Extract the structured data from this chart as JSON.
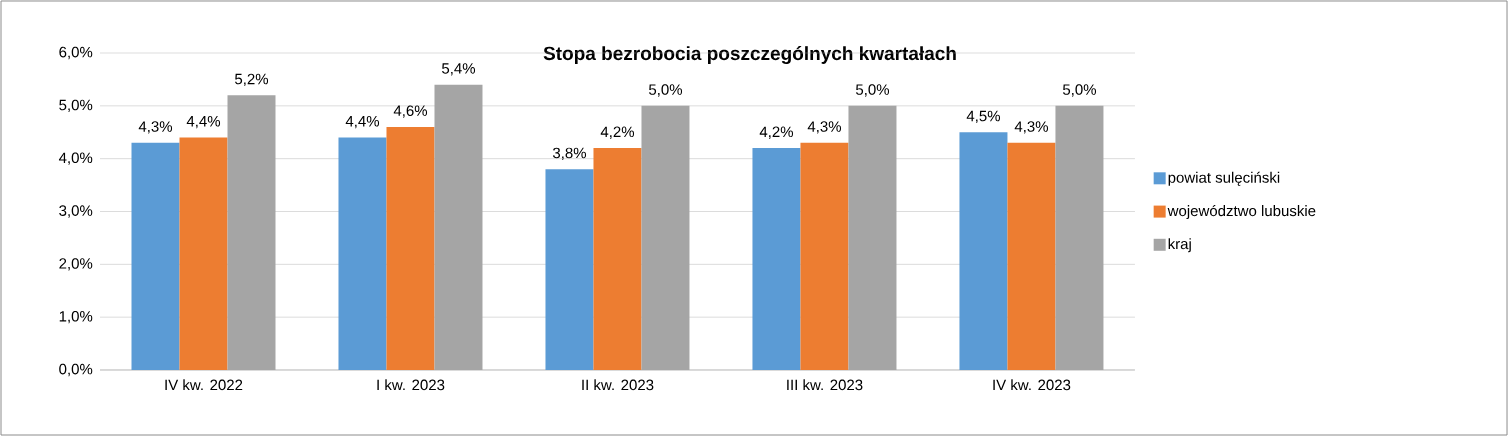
{
  "chart_data": {
    "type": "bar",
    "title": "Stopa bezrobocia poszczególnych kwartałach",
    "categories": [
      "IV kw. 2022",
      "I kw. 2023",
      "II kw. 2023",
      "III kw. 2023",
      "IV kw. 2023"
    ],
    "series": [
      {
        "name": "powiat sulęciński",
        "color": "#5b9bd5",
        "values": [
          4.3,
          4.4,
          3.8,
          4.2,
          4.5
        ],
        "value_labels": [
          "4,3%",
          "4,4%",
          "3,8%",
          "4,2%",
          "4,5%"
        ]
      },
      {
        "name": "województwo lubuskie",
        "color": "#ed7d31",
        "values": [
          4.4,
          4.6,
          4.2,
          4.3,
          4.3
        ],
        "value_labels": [
          "4,4%",
          "4,6%",
          "4,2%",
          "4,3%",
          "4,3%"
        ]
      },
      {
        "name": "kraj",
        "color": "#a5a5a5",
        "values": [
          5.2,
          5.4,
          5.0,
          5.0,
          5.0
        ],
        "value_labels": [
          "5,2%",
          "5,4%",
          "5,0%",
          "5,0%",
          "5,0%"
        ]
      }
    ],
    "ylim": [
      0,
      6
    ],
    "yticks": [
      {
        "value": 0,
        "label": "0,0%"
      },
      {
        "value": 1,
        "label": "1,0%"
      },
      {
        "value": 2,
        "label": "2,0%"
      },
      {
        "value": 3,
        "label": "3,0%"
      },
      {
        "value": 4,
        "label": "4,0%"
      },
      {
        "value": 5,
        "label": "5,0%"
      },
      {
        "value": 6,
        "label": "6,0%"
      }
    ],
    "grid": "y",
    "legend": "right"
  }
}
